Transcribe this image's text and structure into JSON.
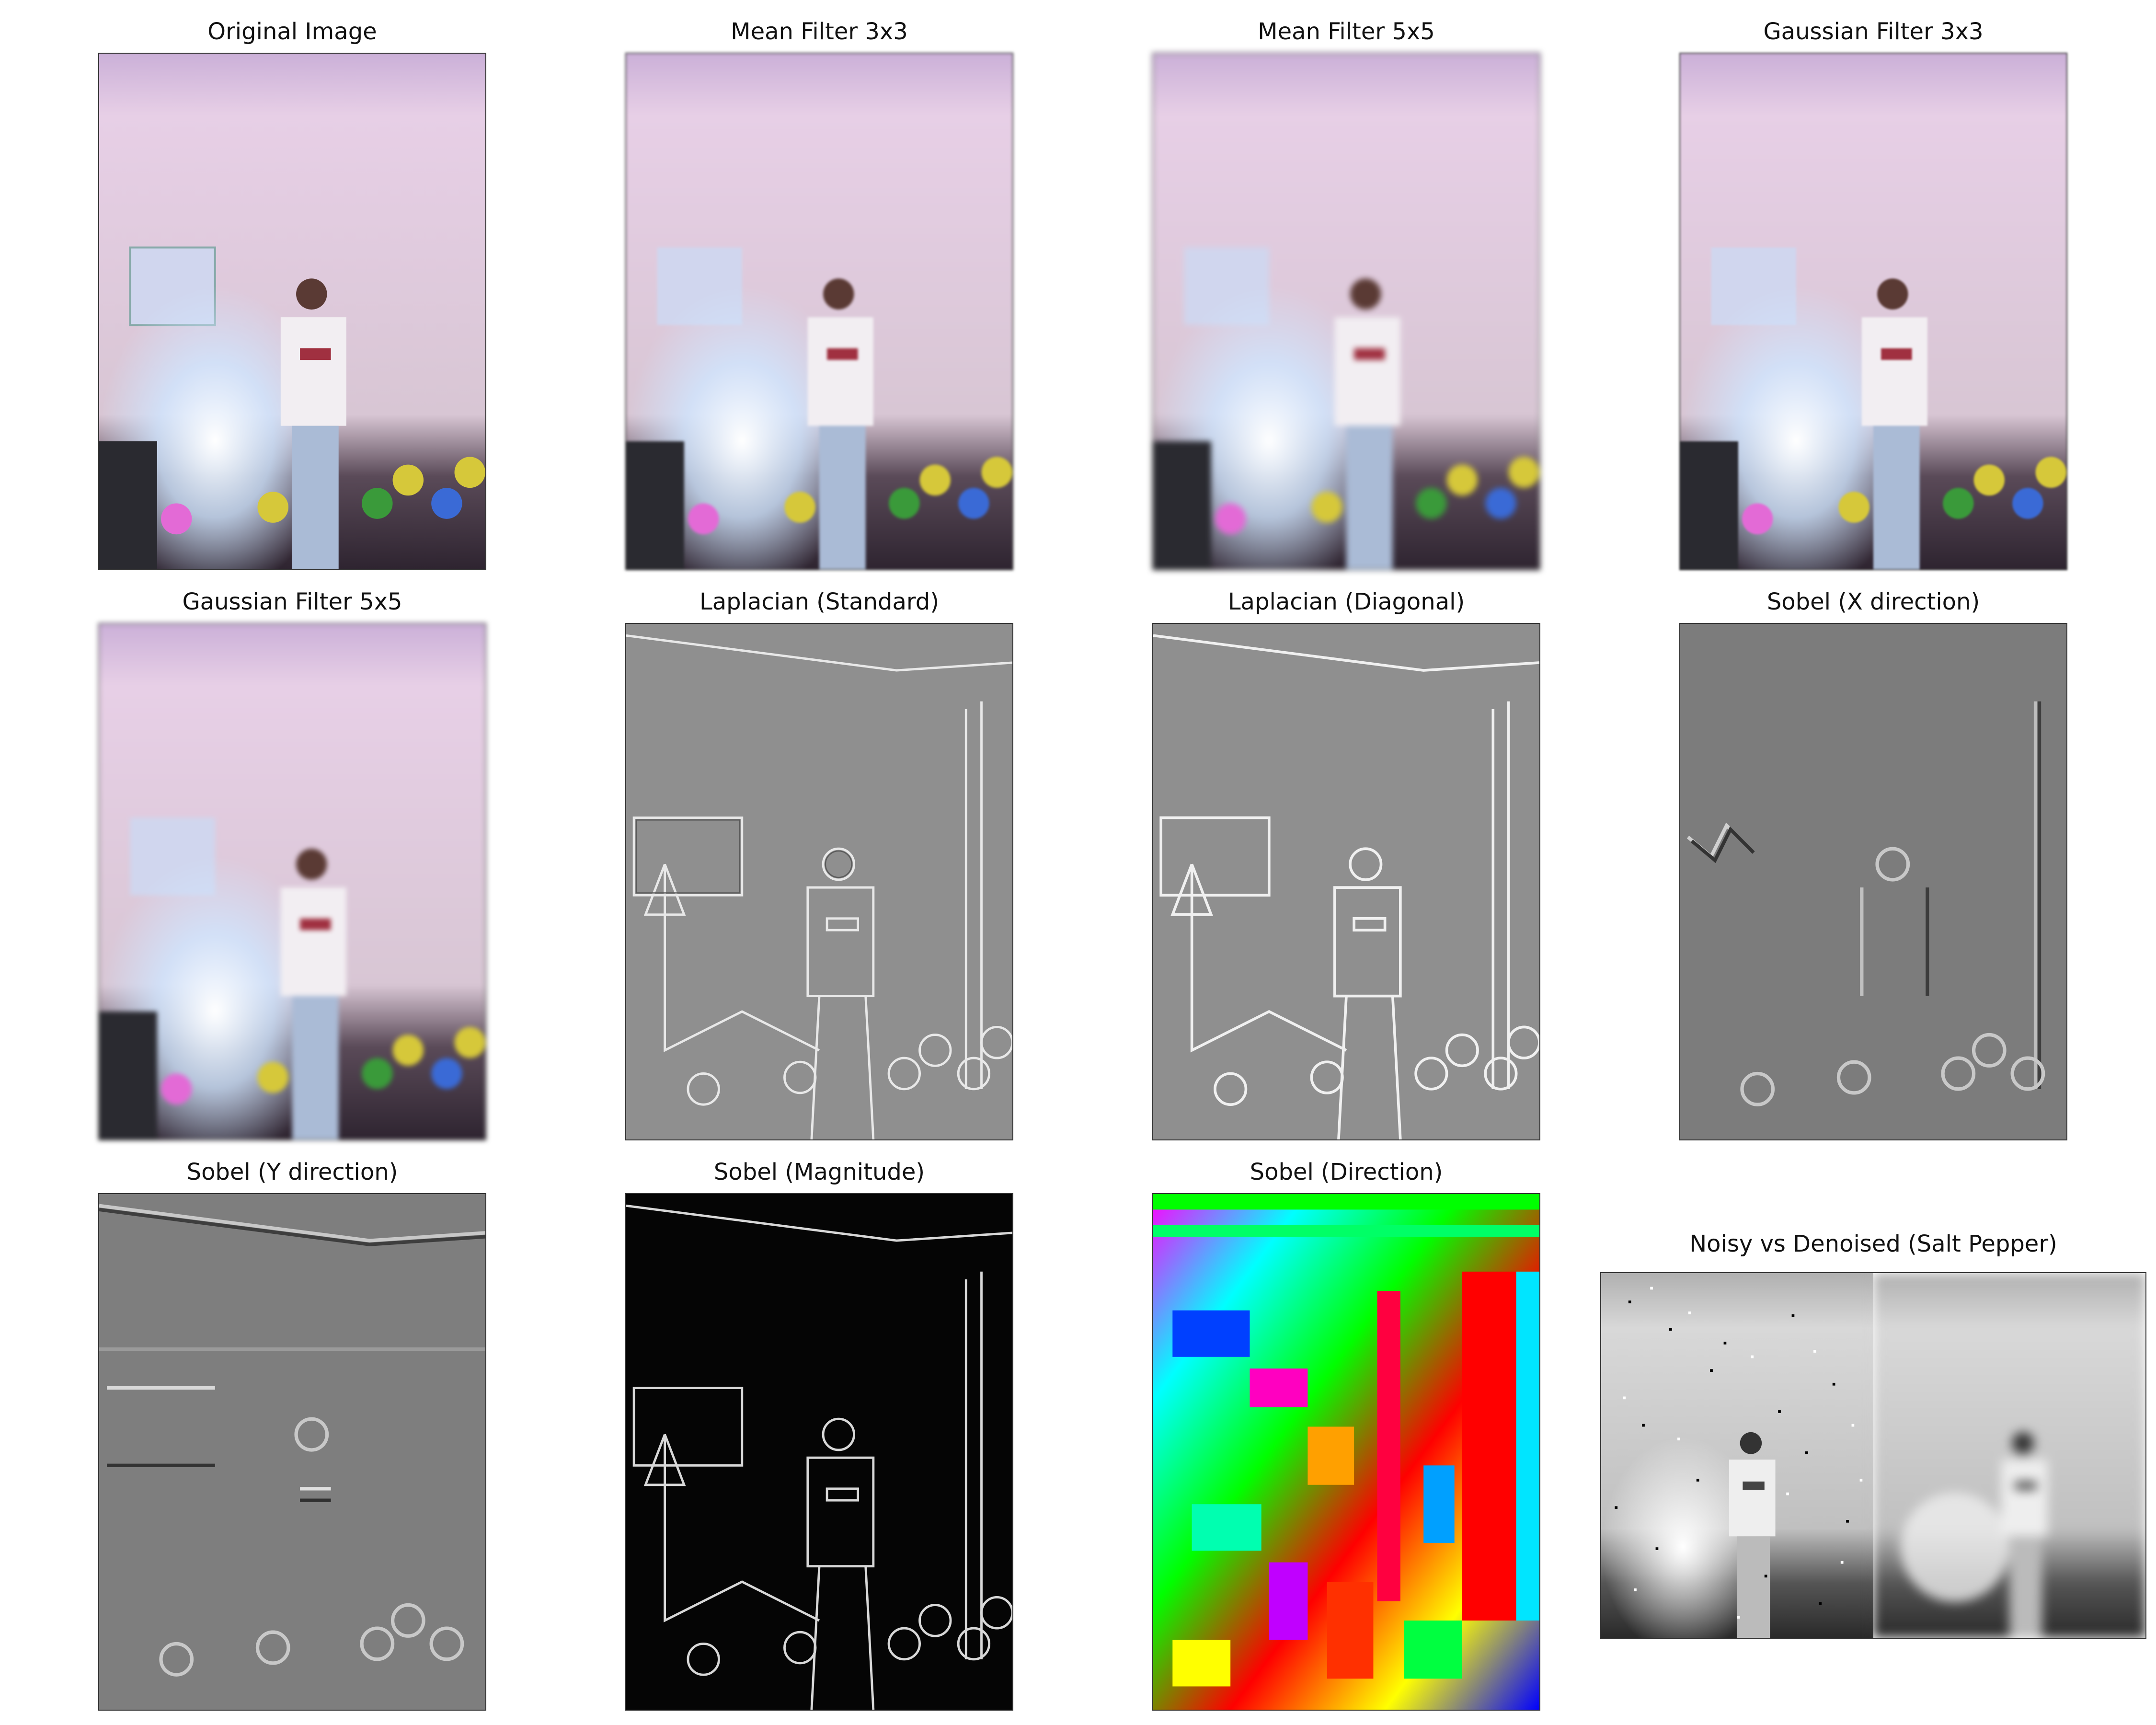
{
  "figure": {
    "panels": [
      {
        "id": "original",
        "title": "Original Image"
      },
      {
        "id": "mean3",
        "title": "Mean Filter 3x3"
      },
      {
        "id": "mean5",
        "title": "Mean Filter 5x5"
      },
      {
        "id": "gauss3",
        "title": "Gaussian Filter 3x3"
      },
      {
        "id": "gauss5",
        "title": "Gaussian Filter 5x5"
      },
      {
        "id": "lap_std",
        "title": "Laplacian (Standard)"
      },
      {
        "id": "lap_diag",
        "title": "Laplacian (Diagonal)"
      },
      {
        "id": "sobel_x",
        "title": "Sobel (X direction)"
      },
      {
        "id": "sobel_y",
        "title": "Sobel (Y direction)"
      },
      {
        "id": "sobel_mag",
        "title": "Sobel (Magnitude)"
      },
      {
        "id": "sobel_dir",
        "title": "Sobel (Direction)"
      },
      {
        "id": "noisy",
        "title": "Noisy vs Denoised (Salt Pepper)"
      }
    ]
  },
  "colors": {
    "wall": "#d9c9d6",
    "ceiling_pink": "#e6b8e6",
    "floor": "#3a2e3a",
    "shirt": "#f2eef2",
    "jeans": "#aabbd6",
    "balloon_yellow": "#d6c83a",
    "balloon_green": "#3a9a3a",
    "balloon_blue": "#3a6ad6",
    "balloon_pink": "#e36ad6",
    "edge_gray": "#8c8c8c"
  }
}
